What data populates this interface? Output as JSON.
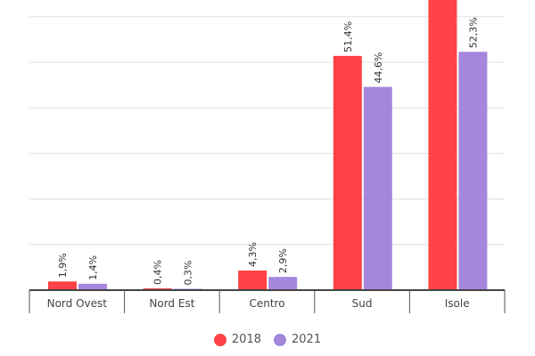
{
  "chart_data": {
    "type": "bar",
    "categories": [
      "Nord Ovest",
      "Nord Est",
      "Centro",
      "Sud",
      "Isole"
    ],
    "series": [
      {
        "name": "2018",
        "color": "#ff4245",
        "values": [
          1.9,
          0.4,
          4.3,
          51.4,
          64
        ],
        "labels": [
          "1,9%",
          "0,4%",
          "4,3%",
          "51,4%",
          ""
        ]
      },
      {
        "name": "2021",
        "color": "#a586dc",
        "values": [
          1.4,
          0.3,
          2.9,
          44.6,
          52.3
        ],
        "labels": [
          "1,4%",
          "0,3%",
          "2,9%",
          "44,6%",
          "52,3%"
        ]
      }
    ],
    "ylim": [
      0,
      63.7
    ],
    "gridlines": [
      10,
      20,
      30,
      40,
      50,
      60
    ],
    "grid": true,
    "legend": "bottom-center"
  }
}
